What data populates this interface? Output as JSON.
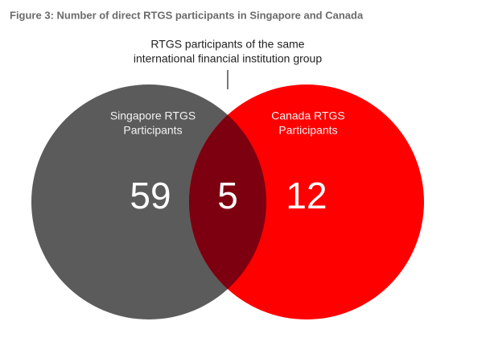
{
  "chart_data": {
    "type": "venn",
    "title": "Figure 3: Number of direct RTGS participants in Singapore and Canada",
    "annotation": [
      "RTGS participants of the same",
      "international financial institution group"
    ],
    "sets": [
      {
        "name": [
          "Singapore RTGS",
          "Participants"
        ],
        "value": 59,
        "color": "#5b5b5b"
      },
      {
        "name": [
          "Canada RTGS",
          "Participants"
        ],
        "value": 12,
        "color": "#ff0000"
      }
    ],
    "intersection": {
      "value": 5,
      "color": "#7d0010"
    }
  }
}
